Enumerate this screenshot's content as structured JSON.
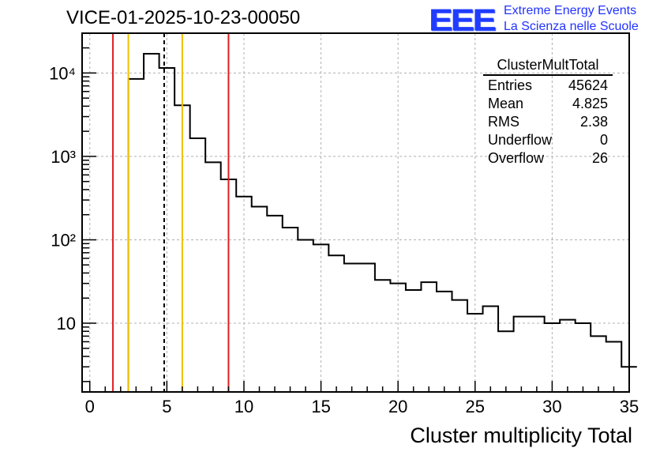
{
  "title": "VICE-01-2025-10-23-00050",
  "logo": {
    "mark": "EEE",
    "line1": "Extreme Energy Events",
    "line2": "La Scienza nelle Scuole",
    "color": "#1f3cff"
  },
  "stats_box": {
    "name": "ClusterMultTotal",
    "rows": [
      {
        "label": "Entries",
        "value": "45624"
      },
      {
        "label": "Mean",
        "value": "4.825"
      },
      {
        "label": "RMS",
        "value": "2.38"
      },
      {
        "label": "Underflow",
        "value": "0"
      },
      {
        "label": "Overflow",
        "value": "26"
      }
    ]
  },
  "chart_data": {
    "type": "histogram",
    "scale_y": "log",
    "xlabel": "Cluster multiplicity Total",
    "ylabel": "",
    "xlim": [
      -0.5,
      35
    ],
    "ylim": [
      1.5,
      30000
    ],
    "x_ticks": [
      0,
      5,
      10,
      15,
      20,
      25,
      30,
      35
    ],
    "x_tick_labels": [
      "0",
      "5",
      "10",
      "15",
      "20",
      "25",
      "30",
      "35"
    ],
    "y_ticks": [
      10,
      100,
      1000,
      10000
    ],
    "y_tick_labels": [
      "10",
      "10²",
      "10³",
      "10⁴"
    ],
    "grid": true,
    "bin_width": 1,
    "bin_start": 2.5,
    "counts": [
      8500,
      17000,
      11500,
      4100,
      1650,
      850,
      530,
      330,
      250,
      195,
      140,
      100,
      88,
      65,
      52,
      52,
      33,
      30,
      25,
      31,
      24,
      19,
      13,
      16,
      8,
      12,
      12,
      10,
      11,
      10,
      7,
      6,
      3
    ],
    "vertical_lines": [
      {
        "x": 1.5,
        "color": "#e02020",
        "style": "solid"
      },
      {
        "x": 2.5,
        "color": "#f0c000",
        "style": "solid"
      },
      {
        "x": 4.825,
        "color": "#000000",
        "style": "dashed"
      },
      {
        "x": 6.0,
        "color": "#f0c000",
        "style": "solid"
      },
      {
        "x": 9.0,
        "color": "#e02020",
        "style": "solid"
      }
    ]
  }
}
